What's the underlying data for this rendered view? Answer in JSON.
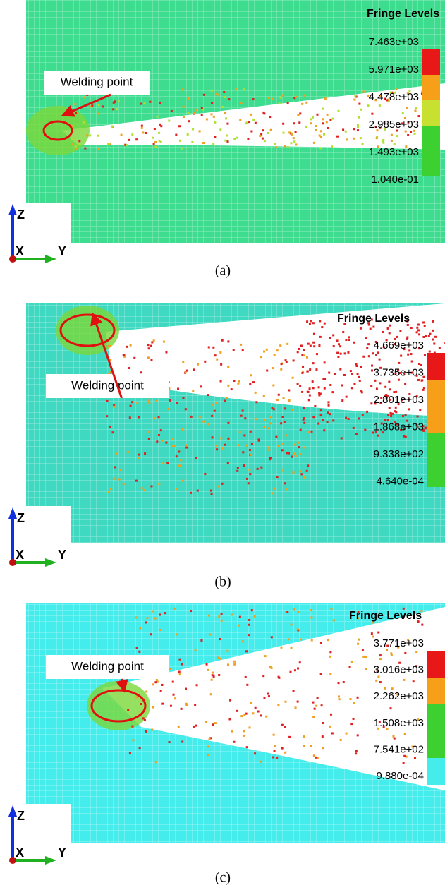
{
  "panels": [
    {
      "caption": "(a)",
      "legend_title": "Fringe Levels",
      "legend_labels": [
        "7.463e+03",
        "5.971e+03",
        "4.478e+03",
        "2.985e+03",
        "1.493e+03",
        "1.040e-01"
      ],
      "annotation": "Welding point",
      "axes": {
        "z": "Z",
        "x": "X",
        "y": "Y"
      }
    },
    {
      "caption": "(b)",
      "legend_title": "Fringe Levels",
      "legend_labels": [
        "4.669e+03",
        "3.735e+03",
        "2.801e+03",
        "1.868e+03",
        "9.338e+02",
        "4.640e-04"
      ],
      "annotation": "Welding point",
      "axes": {
        "z": "Z",
        "x": "X",
        "y": "Y"
      }
    },
    {
      "caption": "(c)",
      "legend_title": "Fringe Levels",
      "legend_labels": [
        "3.771e+03",
        "3.016e+03",
        "2.262e+03",
        "1.508e+03",
        "7.541e+02",
        "9.880e-04"
      ],
      "annotation": "Welding point",
      "axes": {
        "z": "Z",
        "x": "X",
        "y": "Y"
      }
    }
  ]
}
